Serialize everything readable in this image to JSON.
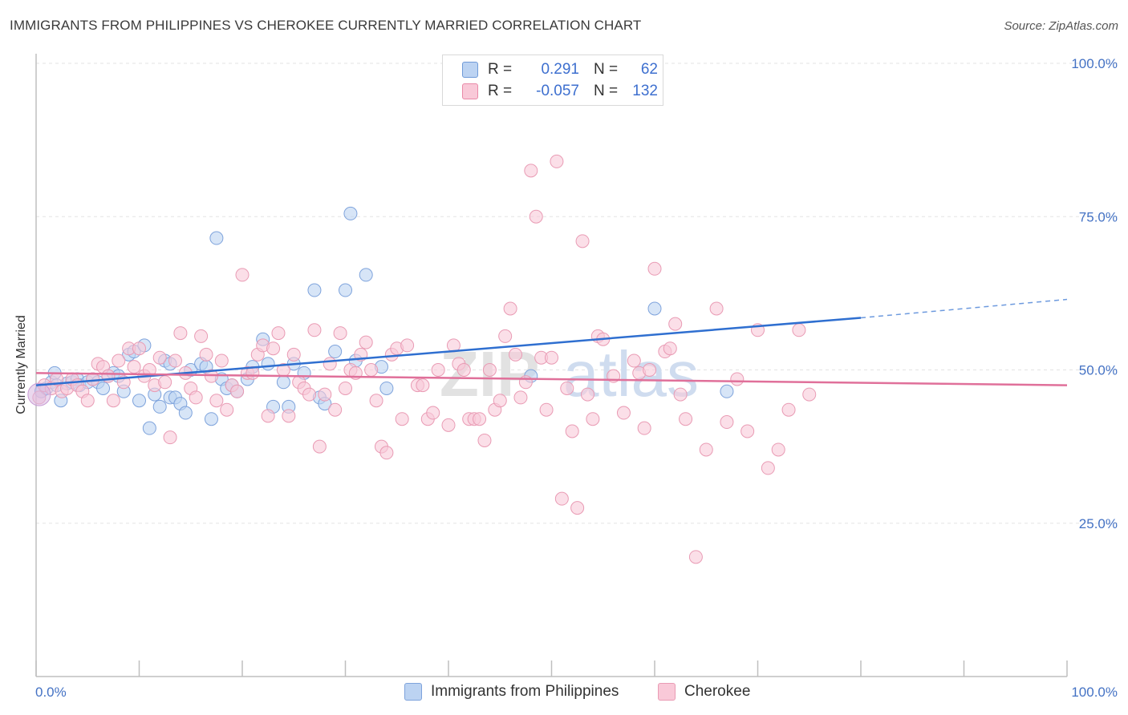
{
  "title": "IMMIGRANTS FROM PHILIPPINES VS CHEROKEE CURRENTLY MARRIED CORRELATION CHART",
  "source": "Source: ZipAtlas.com",
  "watermark": "ZIPatlas",
  "legend": {
    "rows": [
      {
        "r_label": "R =",
        "r_value": "0.291",
        "n_label": "N =",
        "n_value": "62",
        "color": "#a9c4ec",
        "border": "#6f9ad8"
      },
      {
        "r_label": "R =",
        "r_value": "-0.057",
        "n_label": "N =",
        "n_value": "132",
        "color": "#f6b8cc",
        "border": "#e98aa8"
      }
    ]
  },
  "bottom_legend": [
    {
      "label": "Immigrants from Philippines",
      "color": "#bcd3f2",
      "border": "#7ea3dc"
    },
    {
      "label": "Cherokee",
      "color": "#f9c9d8",
      "border": "#e99bb4"
    }
  ],
  "chart_data": {
    "type": "scatter",
    "title": "IMMIGRANTS FROM PHILIPPINES VS CHEROKEE CURRENTLY MARRIED CORRELATION CHART",
    "xlabel": "",
    "ylabel": "Currently Married",
    "xlim": [
      0,
      100
    ],
    "ylim": [
      0,
      100
    ],
    "x_tick_labels": [
      "0.0%",
      "100.0%"
    ],
    "y_ticks": [
      25,
      50,
      75,
      100
    ],
    "y_tick_labels": [
      "25.0%",
      "50.0%",
      "75.0%",
      "100.0%"
    ],
    "grid": true,
    "legend_position": "top-center",
    "series": [
      {
        "name": "Immigrants from Philippines",
        "color": "#7ea3dc",
        "fill": "#bcd3f2",
        "trend": {
          "x0": 0,
          "y0": 47.5,
          "x1": 80,
          "y1": 58.5,
          "x_dash_end": 100,
          "y_dash_end": 61.5,
          "color": "#2f6fd0"
        },
        "points": [
          [
            0.5,
            46.5
          ],
          [
            1,
            47
          ],
          [
            1.5,
            48
          ],
          [
            1.8,
            49.5
          ],
          [
            2,
            47.5
          ],
          [
            2.4,
            45
          ],
          [
            3,
            47.8
          ],
          [
            3.5,
            48
          ],
          [
            4,
            48.5
          ],
          [
            4.2,
            47.5
          ],
          [
            5,
            48
          ],
          [
            5.5,
            48.5
          ],
          [
            6,
            48
          ],
          [
            6.5,
            47
          ],
          [
            7,
            49
          ],
          [
            7.5,
            49.5
          ],
          [
            8,
            49
          ],
          [
            8.5,
            46.5
          ],
          [
            9,
            52.5
          ],
          [
            9.5,
            53
          ],
          [
            10,
            45
          ],
          [
            10.5,
            54
          ],
          [
            11,
            40.5
          ],
          [
            11.5,
            46
          ],
          [
            12,
            44
          ],
          [
            12.5,
            51.5
          ],
          [
            13,
            51
          ],
          [
            13,
            45.5
          ],
          [
            13.5,
            45.5
          ],
          [
            14,
            44.5
          ],
          [
            14.5,
            43
          ],
          [
            15,
            50
          ],
          [
            16,
            51
          ],
          [
            16.5,
            50.5
          ],
          [
            17,
            42
          ],
          [
            17.5,
            71.5
          ],
          [
            18,
            48.5
          ],
          [
            18.5,
            47
          ],
          [
            19,
            47.5
          ],
          [
            19.5,
            46.5
          ],
          [
            20.5,
            48.5
          ],
          [
            21,
            50.5
          ],
          [
            22,
            55
          ],
          [
            22.5,
            51
          ],
          [
            23,
            44
          ],
          [
            24,
            48
          ],
          [
            24.5,
            44
          ],
          [
            25,
            51
          ],
          [
            26,
            49.5
          ],
          [
            27,
            63
          ],
          [
            27.5,
            45.5
          ],
          [
            28,
            44.5
          ],
          [
            29,
            53
          ],
          [
            30,
            63
          ],
          [
            30.5,
            75.5
          ],
          [
            31,
            51.5
          ],
          [
            32,
            65.5
          ],
          [
            33.5,
            50.5
          ],
          [
            34,
            47
          ],
          [
            48,
            49
          ],
          [
            60,
            60
          ],
          [
            67,
            46.5
          ]
        ]
      },
      {
        "name": "Cherokee",
        "color": "#e99bb4",
        "fill": "#f9c9d8",
        "trend": {
          "x0": 0,
          "y0": 49.5,
          "x1": 100,
          "y1": 47.5,
          "color": "#e0709a"
        },
        "points": [
          [
            0.3,
            45.5
          ],
          [
            0.8,
            47.5
          ],
          [
            1.5,
            47
          ],
          [
            2,
            48.5
          ],
          [
            2.5,
            46.5
          ],
          [
            3,
            47
          ],
          [
            3.5,
            48.5
          ],
          [
            4,
            47.5
          ],
          [
            4.5,
            46.5
          ],
          [
            5,
            45
          ],
          [
            5.5,
            48.5
          ],
          [
            6,
            51
          ],
          [
            6.5,
            50.5
          ],
          [
            7,
            49
          ],
          [
            7.5,
            45
          ],
          [
            8,
            51.5
          ],
          [
            8.5,
            48
          ],
          [
            9,
            53.5
          ],
          [
            9.5,
            50.5
          ],
          [
            10,
            53.5
          ],
          [
            10.5,
            49
          ],
          [
            11,
            50
          ],
          [
            11.5,
            47.5
          ],
          [
            12,
            52
          ],
          [
            12.5,
            48
          ],
          [
            13,
            39
          ],
          [
            13.5,
            51.5
          ],
          [
            14,
            56
          ],
          [
            14.5,
            49.5
          ],
          [
            15,
            47
          ],
          [
            15.5,
            45.5
          ],
          [
            16,
            55.5
          ],
          [
            16.5,
            52.5
          ],
          [
            17,
            49
          ],
          [
            17.5,
            45
          ],
          [
            18,
            51.5
          ],
          [
            18.5,
            43.5
          ],
          [
            19,
            47.5
          ],
          [
            19.5,
            46.5
          ],
          [
            20,
            65.5
          ],
          [
            20.5,
            49.5
          ],
          [
            21,
            49.5
          ],
          [
            21.5,
            52.5
          ],
          [
            22,
            54
          ],
          [
            22.5,
            42.5
          ],
          [
            23,
            53.5
          ],
          [
            23.5,
            56
          ],
          [
            24,
            50
          ],
          [
            24.5,
            42.5
          ],
          [
            25,
            52.5
          ],
          [
            25.5,
            48
          ],
          [
            26,
            47
          ],
          [
            26.5,
            46
          ],
          [
            27,
            56.5
          ],
          [
            27.5,
            37.5
          ],
          [
            28,
            46
          ],
          [
            28.5,
            51
          ],
          [
            29,
            43.5
          ],
          [
            29.5,
            56
          ],
          [
            30,
            47
          ],
          [
            30.5,
            50
          ],
          [
            31,
            49.5
          ],
          [
            31.5,
            52.5
          ],
          [
            32,
            54.5
          ],
          [
            32.5,
            50
          ],
          [
            33,
            45
          ],
          [
            33.5,
            37.5
          ],
          [
            34,
            36.5
          ],
          [
            34.5,
            52.5
          ],
          [
            35,
            53.5
          ],
          [
            35.5,
            42
          ],
          [
            36,
            54
          ],
          [
            37,
            47.5
          ],
          [
            37.5,
            47.5
          ],
          [
            38,
            42
          ],
          [
            38.5,
            43
          ],
          [
            39,
            50
          ],
          [
            40,
            41
          ],
          [
            40.5,
            54
          ],
          [
            41,
            51
          ],
          [
            41.5,
            50
          ],
          [
            42,
            42
          ],
          [
            42.5,
            42
          ],
          [
            43,
            42
          ],
          [
            43.5,
            38.5
          ],
          [
            44,
            50
          ],
          [
            44.5,
            43.5
          ],
          [
            45,
            45
          ],
          [
            45.5,
            55.5
          ],
          [
            46,
            60
          ],
          [
            46.5,
            52.5
          ],
          [
            47,
            45.5
          ],
          [
            47.5,
            48
          ],
          [
            48,
            82.5
          ],
          [
            48.5,
            75
          ],
          [
            49,
            52
          ],
          [
            49.5,
            43.5
          ],
          [
            50,
            52
          ],
          [
            50.5,
            84
          ],
          [
            51,
            29
          ],
          [
            51.5,
            47
          ],
          [
            52,
            40
          ],
          [
            52.5,
            27.5
          ],
          [
            53,
            71
          ],
          [
            53.5,
            46
          ],
          [
            54,
            42
          ],
          [
            54.5,
            55.5
          ],
          [
            55,
            55
          ],
          [
            56,
            49
          ],
          [
            57,
            43
          ],
          [
            58,
            51.5
          ],
          [
            58.5,
            49.5
          ],
          [
            59,
            40.5
          ],
          [
            59.5,
            50
          ],
          [
            60,
            66.5
          ],
          [
            61,
            53
          ],
          [
            61.5,
            53.5
          ],
          [
            62,
            57.5
          ],
          [
            62.5,
            46
          ],
          [
            63,
            42
          ],
          [
            64,
            19.5
          ],
          [
            65,
            37
          ],
          [
            66,
            60
          ],
          [
            67,
            41.5
          ],
          [
            68,
            48.5
          ],
          [
            69,
            40
          ],
          [
            70,
            56.5
          ],
          [
            71,
            34
          ],
          [
            72,
            37
          ],
          [
            73,
            43.5
          ],
          [
            74,
            56.5
          ],
          [
            75,
            46
          ]
        ]
      }
    ]
  }
}
